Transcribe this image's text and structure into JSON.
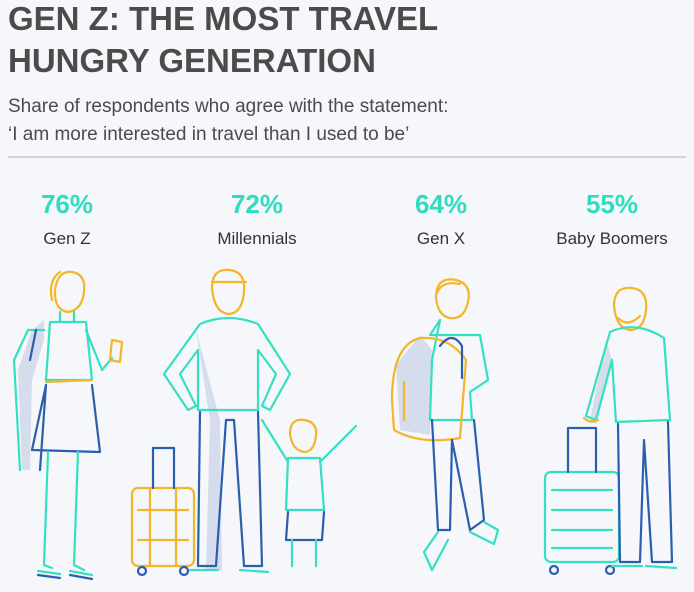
{
  "header": {
    "title": [
      "GEN Z: THE MOST TRAVEL",
      "HUNGRY GENERATION"
    ],
    "subtitle": [
      "Share of respondents who agree with the statement:",
      "‘I am more interested in travel than I used to be’"
    ]
  },
  "items": [
    {
      "value": "76%",
      "label": "Gen Z"
    },
    {
      "value": "72%",
      "label": "Millennials"
    },
    {
      "value": "64%",
      "label": "Gen X"
    },
    {
      "value": "55%",
      "label": "Baby Boomers"
    }
  ]
}
